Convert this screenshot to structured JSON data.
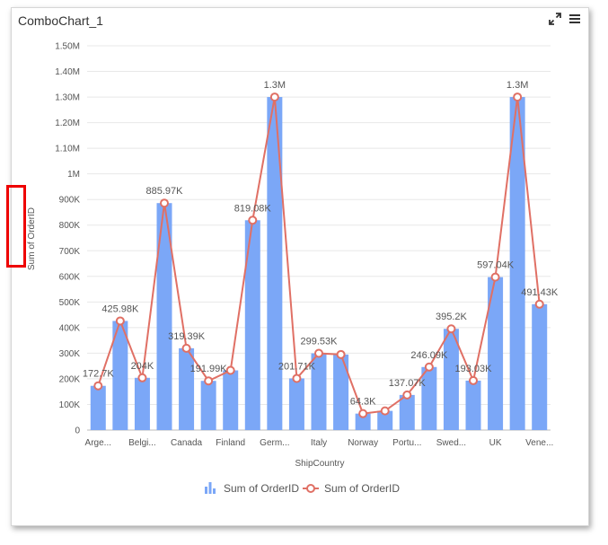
{
  "widget": {
    "title": "ComboChart_1",
    "expand_icon": "expand-icon",
    "menu_icon": "hamburger-menu-icon"
  },
  "colors": {
    "bar": "#7ba7f7",
    "line": "#e07065",
    "grid": "#e8e8e8",
    "highlight_box": "#ee0000"
  },
  "chart_data": {
    "type": "bar",
    "xlabel": "ShipCountry",
    "ylabel": "Sum of OrderID",
    "ylim": [
      0,
      1500000
    ],
    "yticks": [
      0,
      100000,
      200000,
      300000,
      400000,
      500000,
      600000,
      700000,
      800000,
      900000,
      1000000,
      1100000,
      1200000,
      1300000,
      1400000,
      1500000
    ],
    "ytick_labels": [
      "0",
      "100K",
      "200K",
      "300K",
      "400K",
      "500K",
      "600K",
      "700K",
      "800K",
      "900K",
      "1M",
      "1.10M",
      "1.20M",
      "1.30M",
      "1.40M",
      "1.50M"
    ],
    "categories_shown": [
      "Arge...",
      "Belgi...",
      "Canada",
      "Finland",
      "Germ...",
      "Italy",
      "Norway",
      "Portu...",
      "Swed...",
      "UK",
      "Vene..."
    ],
    "values": [
      172700,
      425980,
      204000,
      885970,
      319390,
      191990,
      233000,
      819080,
      1300000,
      201710,
      299530,
      295000,
      64300,
      75000,
      137070,
      246090,
      395200,
      193030,
      597040,
      1300000,
      491430
    ],
    "data_labels": [
      "172.7K",
      "425.98K",
      "204K",
      "885.97K",
      "319.39K",
      "191.99K",
      "",
      "819.08K",
      "1.3M",
      "201.71K",
      "299.53K",
      "",
      "64.3K",
      "",
      "137.07K",
      "246.09K",
      "395.2K",
      "193.03K",
      "597.04K",
      "1.3M",
      "491.43K"
    ],
    "series": [
      {
        "name": "Sum of OrderID",
        "type": "bar"
      },
      {
        "name": "Sum of OrderID",
        "type": "line"
      }
    ],
    "legend_position": "bottom",
    "grid": true
  }
}
